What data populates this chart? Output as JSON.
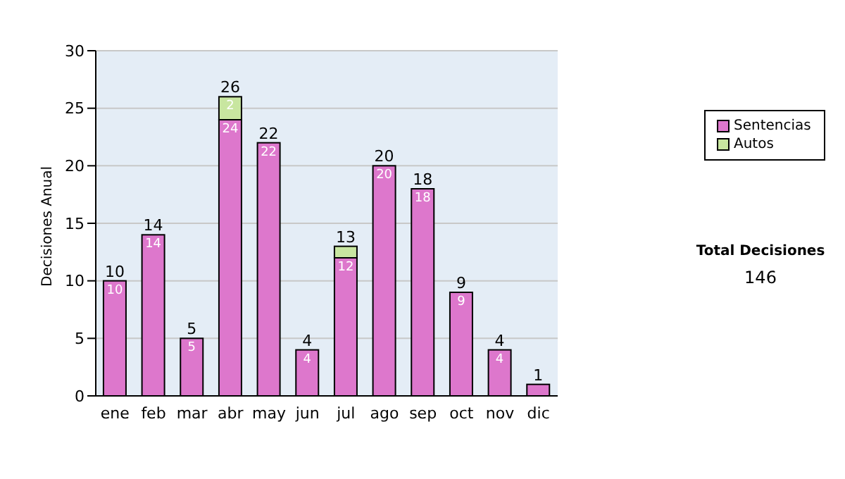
{
  "chart_data": {
    "type": "bar",
    "stacked": true,
    "ylabel": "Decisiones Anual",
    "categories": [
      "ene",
      "feb",
      "mar",
      "abr",
      "may",
      "jun",
      "jul",
      "ago",
      "sep",
      "oct",
      "nov",
      "dic"
    ],
    "series": [
      {
        "name": "Sentencias",
        "color": "#dd77cc",
        "values": [
          10,
          14,
          5,
          24,
          22,
          4,
          12,
          20,
          18,
          9,
          4,
          1
        ],
        "value_labels": [
          "10",
          "14",
          "5",
          "24",
          "22",
          "4",
          "12",
          "20",
          "18",
          "9",
          "4",
          null
        ]
      },
      {
        "name": "Autos",
        "color": "#c8e6a0",
        "values": [
          0,
          0,
          0,
          2,
          0,
          0,
          1,
          0,
          0,
          0,
          0,
          0
        ],
        "value_labels": [
          null,
          null,
          null,
          "2",
          null,
          null,
          null,
          null,
          null,
          null,
          null,
          null
        ]
      }
    ],
    "totals": [
      "10",
      "14",
      "5",
      "26",
      "22",
      "4",
      "13",
      "20",
      "18",
      "9",
      "4",
      "1"
    ],
    "ylim": [
      0,
      30
    ],
    "yticks": [
      0,
      5,
      10,
      15,
      20,
      25,
      30
    ],
    "grid": "y",
    "legend": "right",
    "annotations": [
      "Total Decisiones",
      "146"
    ]
  }
}
